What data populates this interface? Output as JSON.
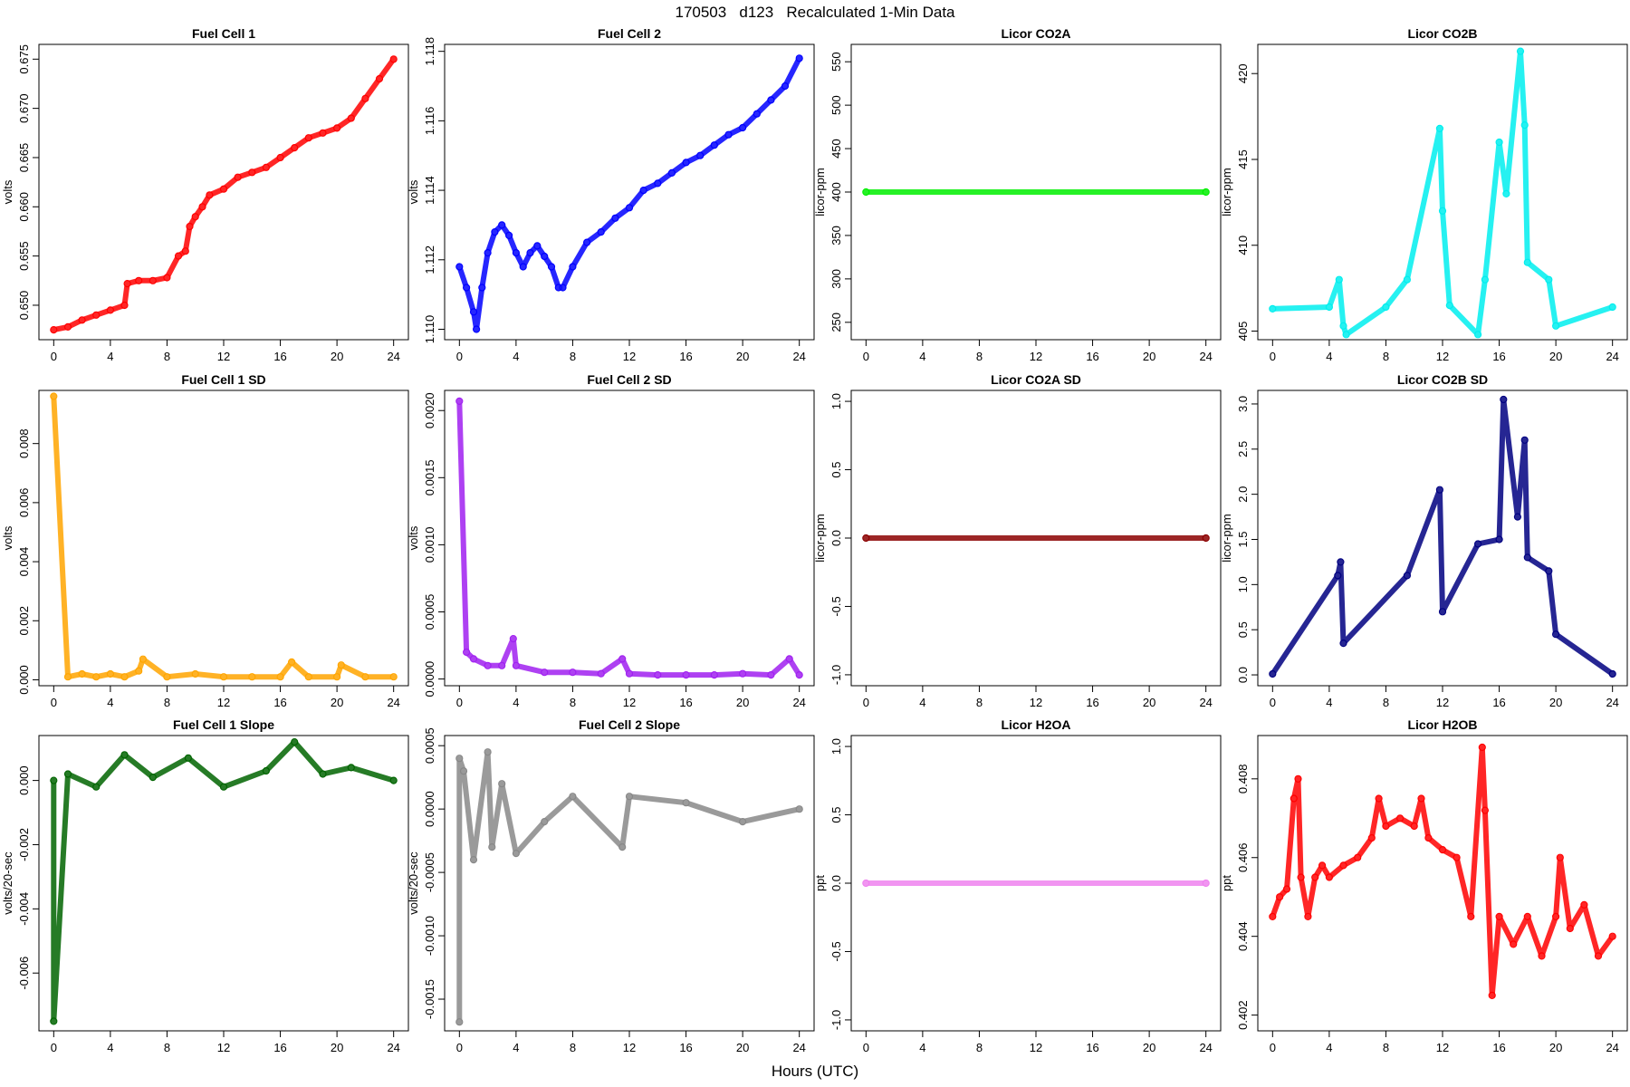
{
  "figure": {
    "title": "170503   d123   Recalculated 1-Min Data",
    "xlabel": "Hours (UTC)"
  },
  "chart_data": [
    {
      "type": "scatter",
      "title": "Fuel Cell 1",
      "ylabel": "volts",
      "xlim": [
        0,
        24
      ],
      "xticks": [
        0,
        4,
        8,
        12,
        16,
        20,
        24
      ],
      "ylim": [
        0.6465,
        0.6765
      ],
      "yticks": [
        "0.650",
        "0.655",
        "0.660",
        "0.665",
        "0.670",
        "0.675"
      ],
      "color": "#ff0000",
      "x": [
        0,
        1,
        2,
        3,
        4,
        5,
        5.2,
        6,
        7,
        8,
        8.8,
        9.3,
        9.6,
        10,
        10.5,
        11,
        12,
        13,
        14,
        15,
        16,
        17,
        18,
        19,
        20,
        21,
        22,
        23,
        24
      ],
      "y": [
        0.6475,
        0.6478,
        0.6485,
        0.649,
        0.6495,
        0.65,
        0.6522,
        0.6525,
        0.6525,
        0.6528,
        0.655,
        0.6555,
        0.658,
        0.659,
        0.66,
        0.6612,
        0.6618,
        0.663,
        0.6635,
        0.664,
        0.665,
        0.666,
        0.667,
        0.6675,
        0.668,
        0.669,
        0.671,
        0.673,
        0.675
      ]
    },
    {
      "type": "scatter",
      "title": "Fuel Cell 2",
      "ylabel": "volts",
      "xlim": [
        0,
        24
      ],
      "xticks": [
        0,
        4,
        8,
        12,
        16,
        20,
        24
      ],
      "ylim": [
        1.1097,
        1.1182
      ],
      "yticks": [
        "1.110",
        "1.112",
        "1.114",
        "1.116",
        "1.118"
      ],
      "color": "#0000ff",
      "x": [
        0,
        0.5,
        1,
        1.2,
        1.6,
        2,
        2.5,
        3,
        3.5,
        4,
        4.5,
        5,
        5.5,
        6,
        6.5,
        7,
        7.3,
        8,
        9,
        10,
        11,
        12,
        13,
        14,
        15,
        16,
        17,
        18,
        19,
        20,
        21,
        22,
        23,
        24
      ],
      "y": [
        1.1118,
        1.1112,
        1.1105,
        1.11,
        1.1112,
        1.1122,
        1.1128,
        1.113,
        1.1127,
        1.1122,
        1.1118,
        1.1122,
        1.1124,
        1.1121,
        1.1118,
        1.1112,
        1.1112,
        1.1118,
        1.1125,
        1.1128,
        1.1132,
        1.1135,
        1.114,
        1.1142,
        1.1145,
        1.1148,
        1.115,
        1.1153,
        1.1156,
        1.1158,
        1.1162,
        1.1166,
        1.117,
        1.1178
      ]
    },
    {
      "type": "scatter",
      "title": "Licor CO2A",
      "ylabel": "licor-ppm",
      "xlim": [
        0,
        24
      ],
      "xticks": [
        0,
        4,
        8,
        12,
        16,
        20,
        24
      ],
      "ylim": [
        230,
        570
      ],
      "yticks": [
        "250",
        "300",
        "350",
        "400",
        "450",
        "500",
        "550"
      ],
      "color": "#00ee00",
      "x": [
        0,
        24
      ],
      "y": [
        400,
        400
      ]
    },
    {
      "type": "scatter",
      "title": "Licor CO2B",
      "ylabel": "licor-ppm",
      "xlim": [
        0,
        24
      ],
      "xticks": [
        0,
        4,
        8,
        12,
        16,
        20,
        24
      ],
      "ylim": [
        404.5,
        421.7
      ],
      "yticks": [
        "405",
        "410",
        "415",
        "420"
      ],
      "color": "#00eeee",
      "x": [
        0,
        4,
        4.7,
        5,
        5.2,
        8,
        9.5,
        11.8,
        12,
        12.5,
        14.5,
        15,
        16,
        16.5,
        17.5,
        17.8,
        18,
        19.5,
        20,
        24
      ],
      "y": [
        406.3,
        406.4,
        408,
        405.3,
        404.8,
        406.4,
        408,
        416.8,
        412,
        406.5,
        404.8,
        408,
        416,
        413,
        421.3,
        417,
        409,
        408,
        405.3,
        406.4
      ]
    },
    {
      "type": "scatter",
      "title": "Fuel Cell 1 SD",
      "ylabel": "volts",
      "xlim": [
        0,
        24
      ],
      "xticks": [
        0,
        4,
        8,
        12,
        16,
        20,
        24
      ],
      "ylim": [
        -0.0002,
        0.0098
      ],
      "yticks": [
        "0.000",
        "0.002",
        "0.004",
        "0.006",
        "0.008"
      ],
      "color": "#ffa500",
      "x": [
        0,
        1,
        2,
        3,
        4,
        5,
        6,
        6.3,
        8,
        10,
        12,
        14,
        16,
        16.8,
        18,
        20,
        20.3,
        22,
        24
      ],
      "y": [
        0.0096,
        0.0001,
        0.0002,
        0.0001,
        0.0002,
        0.0001,
        0.0003,
        0.0007,
        0.0001,
        0.0002,
        0.0001,
        0.0001,
        0.0001,
        0.0006,
        0.0001,
        0.0001,
        0.0005,
        0.0001,
        0.0001
      ]
    },
    {
      "type": "scatter",
      "title": "Fuel Cell 2 SD",
      "ylabel": "volts",
      "xlim": [
        0,
        24
      ],
      "xticks": [
        0,
        4,
        8,
        12,
        16,
        20,
        24
      ],
      "ylim": [
        -5e-05,
        0.00215
      ],
      "yticks": [
        "0.0000",
        "0.0005",
        "0.0010",
        "0.0015",
        "0.0020"
      ],
      "color": "#a020f0",
      "x": [
        0,
        0.5,
        1,
        2,
        3,
        3.8,
        4,
        6,
        8,
        10,
        11.5,
        12,
        14,
        16,
        18,
        20,
        22,
        23.3,
        24
      ],
      "y": [
        0.00207,
        0.0002,
        0.00015,
        0.0001,
        0.0001,
        0.0003,
        0.0001,
        5e-05,
        5e-05,
        4e-05,
        0.00015,
        4e-05,
        3e-05,
        3e-05,
        3e-05,
        4e-05,
        3e-05,
        0.00015,
        3e-05
      ]
    },
    {
      "type": "scatter",
      "title": "Licor CO2A SD",
      "ylabel": "licor-ppm",
      "xlim": [
        0,
        24
      ],
      "xticks": [
        0,
        4,
        8,
        12,
        16,
        20,
        24
      ],
      "ylim": [
        -1.08,
        1.08
      ],
      "yticks": [
        "-1.0",
        "-0.5",
        "0.0",
        "0.5",
        "1.0"
      ],
      "color": "#8b0000",
      "x": [
        0,
        24
      ],
      "y": [
        0,
        0
      ]
    },
    {
      "type": "scatter",
      "title": "Licor CO2B SD",
      "ylabel": "licor-ppm",
      "xlim": [
        0,
        24
      ],
      "xticks": [
        0,
        4,
        8,
        12,
        16,
        20,
        24
      ],
      "ylim": [
        -0.12,
        3.15
      ],
      "yticks": [
        "0.0",
        "0.5",
        "1.0",
        "1.5",
        "2.0",
        "2.5",
        "3.0"
      ],
      "color": "#000080",
      "x": [
        0,
        4.6,
        4.8,
        5,
        9.5,
        11.8,
        12,
        14.5,
        16,
        16.3,
        17.3,
        17.8,
        18,
        19.5,
        20,
        24
      ],
      "y": [
        0.01,
        1.1,
        1.25,
        0.35,
        1.1,
        2.05,
        0.7,
        1.45,
        1.5,
        3.05,
        1.75,
        2.6,
        1.3,
        1.15,
        0.45,
        0.01
      ]
    },
    {
      "type": "scatter",
      "title": "Fuel Cell 1 Slope",
      "ylabel": "volts/20-sec",
      "xlim": [
        0,
        24
      ],
      "xticks": [
        0,
        4,
        8,
        12,
        16,
        20,
        24
      ],
      "ylim": [
        -0.0078,
        0.0014
      ],
      "yticks": [
        "-0.006",
        "-0.004",
        "-0.002",
        "0.000"
      ],
      "color": "#006400",
      "x": [
        0,
        0,
        1,
        3,
        5,
        7,
        9.5,
        12,
        15,
        17,
        19,
        21,
        24
      ],
      "y": [
        0,
        -0.0075,
        0.0002,
        -0.0002,
        0.0008,
        0.0001,
        0.0007,
        -0.0002,
        0.0003,
        0.0012,
        0.0002,
        0.0004,
        0
      ]
    },
    {
      "type": "scatter",
      "title": "Fuel Cell 2 Slope",
      "ylabel": "volts/20-sec",
      "xlim": [
        0,
        24
      ],
      "xticks": [
        0,
        4,
        8,
        12,
        16,
        20,
        24
      ],
      "ylim": [
        -0.00175,
        0.00058
      ],
      "yticks": [
        "-0.0015",
        "-0.0010",
        "-0.0005",
        "0.0000",
        "0.0005"
      ],
      "color": "#888888",
      "x": [
        0,
        0,
        0.3,
        1,
        2,
        2.3,
        3,
        4,
        6,
        8,
        11.5,
        12,
        16,
        20,
        24
      ],
      "y": [
        -0.00168,
        0.0004,
        0.0003,
        -0.0004,
        0.00045,
        -0.0003,
        0.0002,
        -0.00035,
        -0.0001,
        0.0001,
        -0.0003,
        0.0001,
        5e-05,
        -0.0001,
        0
      ]
    },
    {
      "type": "scatter",
      "title": "Licor H2OA",
      "ylabel": "ppt",
      "xlim": [
        0,
        24
      ],
      "xticks": [
        0,
        4,
        8,
        12,
        16,
        20,
        24
      ],
      "ylim": [
        -1.08,
        1.08
      ],
      "yticks": [
        "-1.0",
        "-0.5",
        "0.0",
        "0.5",
        "1.0"
      ],
      "color": "#ee82ee",
      "x": [
        0,
        24
      ],
      "y": [
        0,
        0
      ]
    },
    {
      "type": "scatter",
      "title": "Licor H2OB",
      "ylabel": "ppt",
      "xlim": [
        0,
        24
      ],
      "xticks": [
        0,
        4,
        8,
        12,
        16,
        20,
        24
      ],
      "ylim": [
        0.4016,
        0.4091
      ],
      "yticks": [
        "0.402",
        "0.404",
        "0.406",
        "0.408"
      ],
      "color": "#ff0000",
      "x": [
        0,
        0.5,
        1,
        1.5,
        1.8,
        2,
        2.5,
        3,
        3.5,
        4,
        5,
        6,
        7,
        7.5,
        8,
        9,
        10,
        10.5,
        11,
        12,
        13,
        14,
        14.8,
        15,
        15.5,
        16,
        17,
        18,
        19,
        20,
        20.3,
        21,
        22,
        23,
        24
      ],
      "y": [
        0.4045,
        0.405,
        0.4052,
        0.4075,
        0.408,
        0.4055,
        0.4045,
        0.4055,
        0.4058,
        0.4055,
        0.4058,
        0.406,
        0.4065,
        0.4075,
        0.4068,
        0.407,
        0.4068,
        0.4075,
        0.4065,
        0.4062,
        0.406,
        0.4045,
        0.4088,
        0.4072,
        0.4025,
        0.4045,
        0.4038,
        0.4045,
        0.4035,
        0.4045,
        0.406,
        0.4042,
        0.4048,
        0.4035,
        0.404
      ]
    }
  ]
}
